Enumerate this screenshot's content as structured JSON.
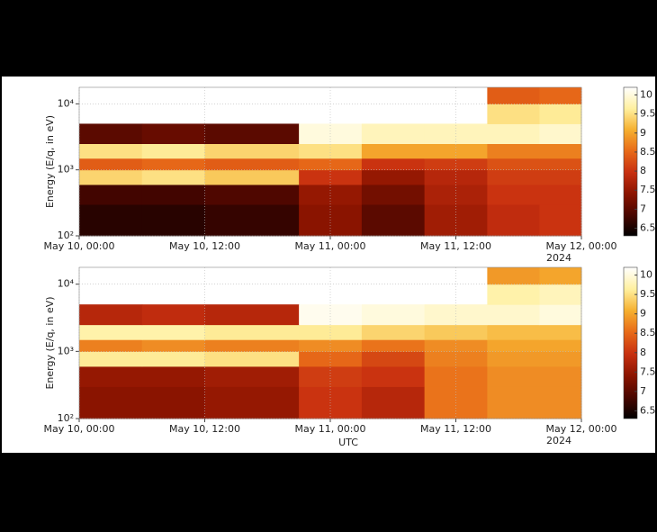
{
  "chart_data": [
    {
      "type": "spectrogram",
      "ylabel": "Energy (E/q, in eV)",
      "x_edges": [
        0,
        6,
        12,
        21,
        27,
        33,
        39,
        44,
        48
      ],
      "y_edges": [
        100,
        300,
        600,
        1000,
        1500,
        2500,
        5000,
        10000,
        17800
      ],
      "z": [
        [
          6.6,
          6.6,
          6.7,
          7.4,
          7.0,
          7.6,
          7.9,
          8.0
        ],
        [
          6.8,
          6.8,
          6.9,
          7.5,
          7.2,
          7.7,
          8.0,
          8.0
        ],
        [
          9.4,
          9.5,
          9.3,
          8.0,
          7.5,
          7.8,
          8.1,
          8.1
        ],
        [
          8.4,
          8.5,
          8.4,
          8.5,
          8.0,
          8.1,
          8.3,
          8.3
        ],
        [
          9.5,
          9.6,
          9.4,
          9.5,
          9.0,
          9.0,
          8.7,
          8.7
        ],
        [
          7.0,
          7.1,
          7.0,
          10.0,
          9.8,
          9.8,
          9.8,
          9.9
        ],
        [
          null,
          null,
          null,
          null,
          null,
          null,
          9.5,
          9.6
        ],
        [
          null,
          null,
          null,
          null,
          null,
          null,
          8.4,
          8.5
        ]
      ],
      "xlim": [
        0,
        48
      ],
      "xticks": [
        {
          "value": 0,
          "label": "May 10, 00:00"
        },
        {
          "value": 12,
          "label": "May 10, 12:00"
        },
        {
          "value": 24,
          "label": "May 11, 00:00"
        },
        {
          "value": 36,
          "label": "May 11, 12:00"
        },
        {
          "value": 48,
          "label": "May 12, 00:00"
        }
      ],
      "x_offset_label": "2024",
      "ylim": [
        100,
        17800
      ],
      "yscale": "log",
      "yticks": [
        {
          "value": 100,
          "label": "10²"
        },
        {
          "value": 1000,
          "label": "10³"
        },
        {
          "value": 10000,
          "label": "10⁴"
        }
      ],
      "grid": true,
      "clim": [
        6.3,
        10.2
      ],
      "cticks": [
        6.5,
        7,
        7.5,
        8,
        8.5,
        9,
        9.5,
        10
      ],
      "colormap": [
        "#000000",
        "#4a0600",
        "#8c1400",
        "#c83010",
        "#e86a18",
        "#f6b030",
        "#fff0a0",
        "#ffffff"
      ]
    },
    {
      "type": "spectrogram",
      "ylabel": "Energy (E/q, in eV)",
      "xlabel": "UTC",
      "x_edges": [
        0,
        6,
        12,
        21,
        27,
        33,
        39,
        44,
        48
      ],
      "y_edges": [
        100,
        300,
        600,
        1000,
        1500,
        2500,
        5000,
        10000,
        17800
      ],
      "z": [
        [
          7.4,
          7.4,
          7.5,
          8.0,
          7.8,
          8.6,
          8.8,
          8.8
        ],
        [
          7.5,
          7.5,
          7.6,
          8.1,
          8.0,
          8.6,
          8.8,
          8.8
        ],
        [
          9.6,
          9.6,
          9.5,
          8.5,
          8.2,
          8.7,
          8.9,
          8.9
        ],
        [
          8.7,
          8.8,
          8.7,
          8.8,
          8.6,
          8.8,
          9.0,
          9.0
        ],
        [
          9.7,
          9.7,
          9.6,
          9.6,
          9.4,
          9.3,
          9.2,
          9.2
        ],
        [
          7.8,
          7.9,
          7.8,
          10.1,
          10.0,
          9.9,
          9.9,
          10.0
        ],
        [
          null,
          null,
          null,
          null,
          null,
          null,
          9.7,
          9.8
        ],
        [
          null,
          null,
          null,
          null,
          null,
          null,
          8.9,
          9.0
        ]
      ],
      "xlim": [
        0,
        48
      ],
      "xticks": [
        {
          "value": 0,
          "label": "May 10, 00:00"
        },
        {
          "value": 12,
          "label": "May 10, 12:00"
        },
        {
          "value": 24,
          "label": "May 11, 00:00"
        },
        {
          "value": 36,
          "label": "May 11, 12:00"
        },
        {
          "value": 48,
          "label": "May 12, 00:00"
        }
      ],
      "x_offset_label": "2024",
      "ylim": [
        100,
        17800
      ],
      "yscale": "log",
      "yticks": [
        {
          "value": 100,
          "label": "10²"
        },
        {
          "value": 1000,
          "label": "10³"
        },
        {
          "value": 10000,
          "label": "10⁴"
        }
      ],
      "grid": true,
      "clim": [
        6.3,
        10.2
      ],
      "cticks": [
        6.5,
        7,
        7.5,
        8,
        8.5,
        9,
        9.5,
        10
      ],
      "colormap": [
        "#000000",
        "#4a0600",
        "#8c1400",
        "#c83010",
        "#e86a18",
        "#f6b030",
        "#fff0a0",
        "#ffffff"
      ]
    }
  ]
}
